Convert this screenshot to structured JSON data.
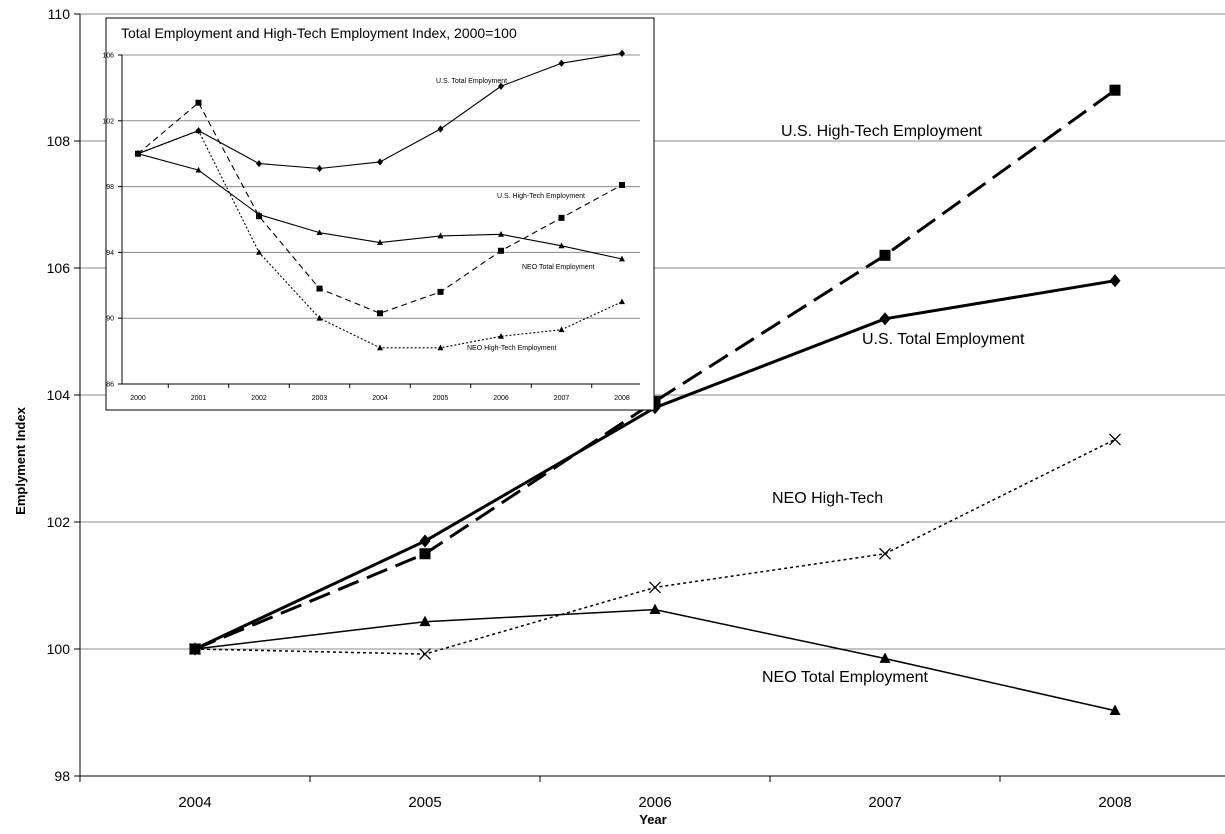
{
  "chart_data": [
    {
      "id": "main",
      "type": "line",
      "title": "",
      "xlabel": "Year",
      "ylabel": "Emplyment Index",
      "x": [
        "2004",
        "2005",
        "2006",
        "2007",
        "2008"
      ],
      "ylim": [
        98,
        110
      ],
      "yticks": [
        "98",
        "100",
        "102",
        "104",
        "106",
        "108",
        "110"
      ],
      "grid": true,
      "series": [
        {
          "name": "U.S. High-Tech Employment",
          "marker": "square",
          "dash": "long-dash",
          "values": [
            100,
            101.5,
            103.9,
            106.2,
            108.8
          ]
        },
        {
          "name": "U.S. Total Employment",
          "marker": "diamond",
          "dash": "solid-thick",
          "values": [
            100,
            101.7,
            103.8,
            105.2,
            105.8
          ]
        },
        {
          "name": "NEO High-Tech",
          "marker": "x",
          "dash": "dotted",
          "values": [
            100,
            99.92,
            100.97,
            101.5,
            103.3
          ]
        },
        {
          "name": "NEO Total Employment",
          "marker": "triangle",
          "dash": "solid",
          "values": [
            100,
            100.43,
            100.62,
            99.85,
            99.03
          ]
        }
      ]
    },
    {
      "id": "inset",
      "type": "line",
      "title": "Total Employment and High-Tech Employment Index, 2000=100",
      "x": [
        "2000",
        "2001",
        "2002",
        "2003",
        "2004",
        "2005",
        "2006",
        "2007",
        "2008"
      ],
      "ylim": [
        86,
        106
      ],
      "yticks": [
        "86",
        "90",
        "94",
        "98",
        "102",
        "106"
      ],
      "grid": true,
      "series": [
        {
          "name": "U.S. Total Employment",
          "marker": "diamond",
          "dash": "solid",
          "values": [
            100,
            101.4,
            99.4,
            99.1,
            99.5,
            101.5,
            104.1,
            105.5,
            106.1
          ]
        },
        {
          "name": "U.S. High-Tech Employment",
          "marker": "square",
          "dash": "dashed",
          "values": [
            100,
            103.1,
            96.2,
            91.8,
            90.3,
            91.6,
            94.1,
            96.1,
            98.1
          ]
        },
        {
          "name": "NEO Total Employment",
          "marker": "triangle",
          "dash": "solid",
          "values": [
            100,
            99.0,
            96.3,
            95.2,
            94.6,
            95.0,
            95.1,
            94.4,
            93.6
          ]
        },
        {
          "name": "NEO High-Tech Employment",
          "marker": "triangle",
          "dash": "dotted",
          "values": [
            100,
            101.4,
            94.0,
            90.0,
            88.2,
            88.2,
            88.9,
            89.3,
            91.0
          ]
        }
      ]
    }
  ]
}
